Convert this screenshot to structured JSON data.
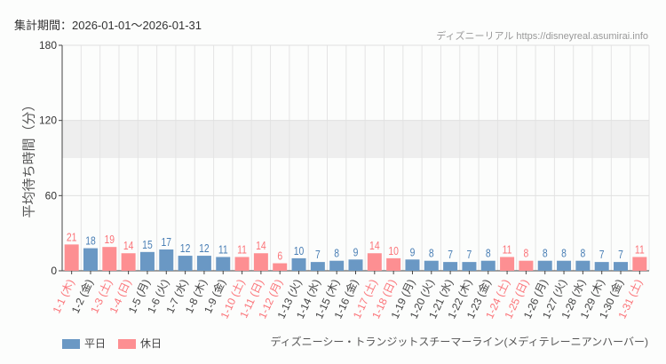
{
  "header": {
    "period": "集計期間：2026-01-01～2026-01-31",
    "credit": "ディズニーリアル https://disneyreal.asumirai.info"
  },
  "attraction": "ディズニーシー・トランジットスチーマーライン(メディテレーニアンハーバー)",
  "colors": {
    "weekday": "#6a98c4",
    "holiday": "#fd8f92",
    "weekday_text": "#4a7fb5",
    "holiday_text": "#fb7479",
    "band": "#eeeeee"
  },
  "chart_data": {
    "type": "bar",
    "ylabel": "平均待ち時間（分）",
    "ylim": [
      0,
      180
    ],
    "yticks": [
      0,
      60,
      120,
      180
    ],
    "categories": [
      "1-1 (木)",
      "1-2 (金)",
      "1-3 (土)",
      "1-4 (日)",
      "1-5 (月)",
      "1-6 (火)",
      "1-7 (水)",
      "1-8 (木)",
      "1-9 (金)",
      "1-10 (土)",
      "1-11 (日)",
      "1-12 (月)",
      "1-13 (火)",
      "1-14 (水)",
      "1-15 (木)",
      "1-16 (金)",
      "1-17 (土)",
      "1-18 (日)",
      "1-19 (月)",
      "1-20 (火)",
      "1-21 (水)",
      "1-22 (木)",
      "1-23 (金)",
      "1-24 (土)",
      "1-25 (日)",
      "1-26 (月)",
      "1-27 (火)",
      "1-28 (水)",
      "1-29 (木)",
      "1-30 (金)",
      "1-31 (土)"
    ],
    "values": [
      21,
      18,
      19,
      14,
      15,
      17,
      12,
      12,
      11,
      11,
      14,
      6,
      10,
      7,
      8,
      9,
      14,
      10,
      9,
      8,
      7,
      7,
      8,
      11,
      8,
      8,
      8,
      8,
      7,
      7,
      11
    ],
    "holiday": [
      1,
      0,
      1,
      1,
      0,
      0,
      0,
      0,
      0,
      1,
      1,
      1,
      0,
      0,
      0,
      0,
      1,
      1,
      0,
      0,
      0,
      0,
      0,
      1,
      1,
      0,
      0,
      0,
      0,
      0,
      1
    ],
    "legend": [
      {
        "label": "平日",
        "key": "weekday"
      },
      {
        "label": "休日",
        "key": "holiday"
      }
    ],
    "legend_position": "bottom-left"
  }
}
